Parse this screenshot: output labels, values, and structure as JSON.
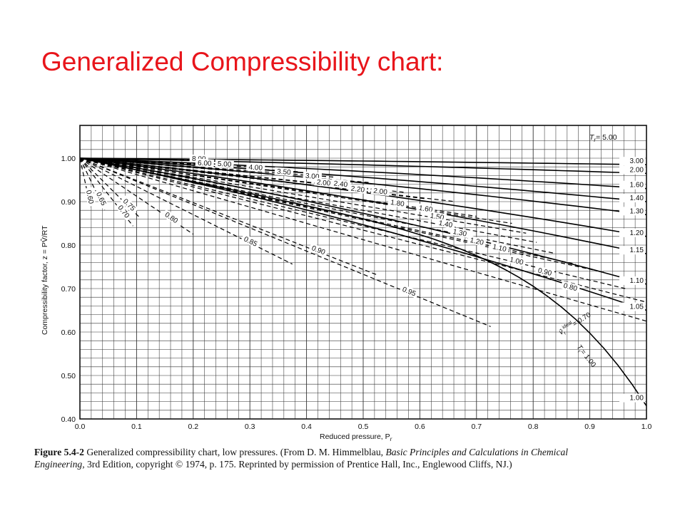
{
  "slide": {
    "title": "Generalized Compressibility chart:"
  },
  "chart_data": {
    "type": "line",
    "xlabel_main": "Reduced pressure, P",
    "xlabel_sub": "r",
    "ylabel": "Compressibility factor, z = PV̂/RT",
    "xlim": [
      0.0,
      1.0
    ],
    "ylim": [
      0.4,
      1.0
    ],
    "x_ticks": [
      "0.0",
      "0.1",
      "0.2",
      "0.3",
      "0.4",
      "0.5",
      "0.6",
      "0.7",
      "0.8",
      "0.9",
      "1.0"
    ],
    "y_ticks": [
      "0.40",
      "0.50",
      "0.60",
      "0.70",
      "0.80",
      "0.90",
      "1.00"
    ],
    "grid": true,
    "tr_header": "T",
    "tr_header_sub": "r",
    "tr_header_value": "= 5.00",
    "vr_ideal_label": "v̂",
    "vr_ideal_sub": "r",
    "vr_ideal_sup": "ideal",
    "vr_ideal_value": "= 0.70",
    "tr_solid_label": "T",
    "tr_solid_sub": "r",
    "tr_solid_value": "= 1.00",
    "series_tr": [
      {
        "name": "3.00",
        "end": 0.985
      },
      {
        "name": "2.00",
        "end": 0.965
      },
      {
        "name": "1.60",
        "end": 0.93
      },
      {
        "name": "1.40",
        "end": 0.9
      },
      {
        "name": "1.30",
        "end": 0.87
      },
      {
        "name": "1.20",
        "end": 0.82
      },
      {
        "name": "1.15",
        "end": 0.78
      },
      {
        "name": "1.10",
        "end": 0.71
      },
      {
        "name": "1.05",
        "end": 0.65
      },
      {
        "name": "1.00",
        "end": 0.44
      }
    ],
    "series_vr": [
      {
        "name": "8.00",
        "x": 0.21,
        "y": 0.995
      },
      {
        "name": "6.00",
        "x": 0.22,
        "y": 0.985
      },
      {
        "name": "5.00",
        "x": 0.255,
        "y": 0.983
      },
      {
        "name": "4.00",
        "x": 0.31,
        "y": 0.975
      },
      {
        "name": "3.50",
        "x": 0.36,
        "y": 0.965
      },
      {
        "name": "3.00",
        "x": 0.41,
        "y": 0.955
      },
      {
        "name": "2.00",
        "x": 0.43,
        "y": 0.94
      },
      {
        "name": "2.40",
        "x": 0.46,
        "y": 0.937
      },
      {
        "name": "2.20",
        "x": 0.49,
        "y": 0.925
      },
      {
        "name": "2.00",
        "x": 0.53,
        "y": 0.92
      },
      {
        "name": "1.80",
        "x": 0.56,
        "y": 0.893
      },
      {
        "name": "1.60",
        "x": 0.61,
        "y": 0.88
      },
      {
        "name": "1.50",
        "x": 0.63,
        "y": 0.862
      },
      {
        "name": "1.40",
        "x": 0.645,
        "y": 0.845
      },
      {
        "name": "1.30",
        "x": 0.67,
        "y": 0.825
      },
      {
        "name": "1.20",
        "x": 0.7,
        "y": 0.805
      },
      {
        "name": "1.10",
        "x": 0.74,
        "y": 0.79
      },
      {
        "name": "1.00",
        "x": 0.77,
        "y": 0.76
      },
      {
        "name": "0.90",
        "x": 0.82,
        "y": 0.735
      },
      {
        "name": "0.80",
        "x": 0.865,
        "y": 0.7
      },
      {
        "name": "0.95",
        "x": 0.58,
        "y": 0.69
      },
      {
        "name": "0.90",
        "x": 0.42,
        "y": 0.785
      },
      {
        "name": "0.85",
        "x": 0.3,
        "y": 0.805
      },
      {
        "name": "0.80",
        "x": 0.16,
        "y": 0.86
      },
      {
        "name": "0.75",
        "x": 0.085,
        "y": 0.89
      },
      {
        "name": "0.70",
        "x": 0.075,
        "y": 0.875
      },
      {
        "name": "0.65",
        "x": 0.035,
        "y": 0.905
      },
      {
        "name": "0.60",
        "x": 0.015,
        "y": 0.91
      }
    ]
  },
  "caption": {
    "figure_label": "Figure 5.4-2",
    "text1": "  Generalized compressibility chart, low pressures. (From D. M. Himmelblau, ",
    "italic1": "Basic Principles and Calculations in Chemical Engineering",
    "text2": ", 3rd Edition, copyright © 1974, p. 175. Reprinted by permission of Prentice Hall, Inc., Englewood Cliffs, NJ.)"
  }
}
